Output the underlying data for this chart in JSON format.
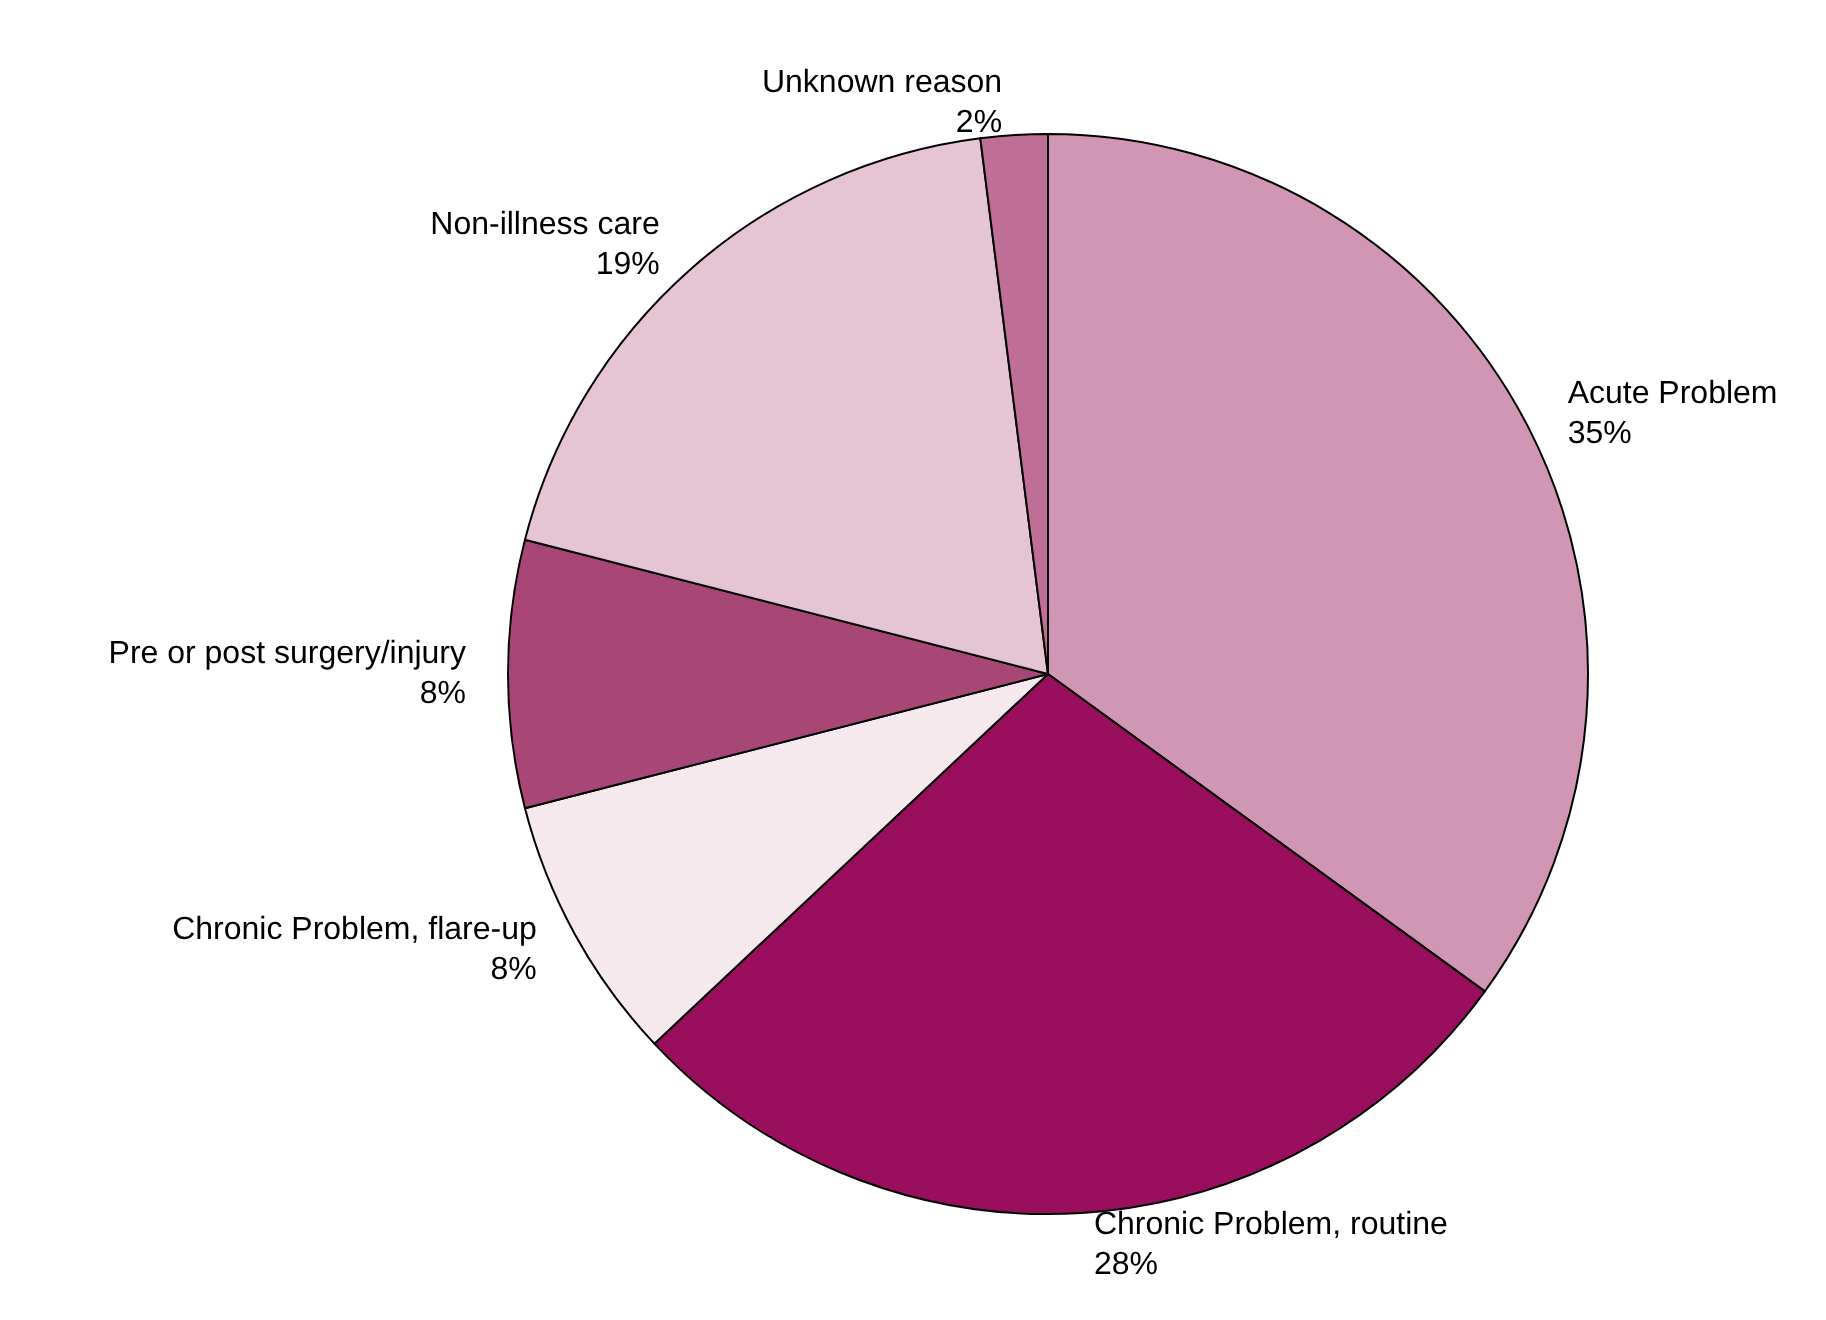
{
  "chart_data": {
    "type": "pie",
    "categories": [
      "Acute Problem",
      "Chronic Problem, routine",
      "Chronic Problem, flare-up",
      "Pre or post surgery/injury",
      "Non-illness care",
      "Unknown reason"
    ],
    "values": [
      35,
      28,
      8,
      8,
      19,
      2
    ],
    "value_labels": [
      "35%",
      "28%",
      "8%",
      "8%",
      "19%",
      "2%"
    ],
    "colors": [
      "#d196b4",
      "#9a0e5e",
      "#f5e9ee",
      "#a84676",
      "#e5c4d3",
      "#bf6e96"
    ],
    "legend": false
  }
}
